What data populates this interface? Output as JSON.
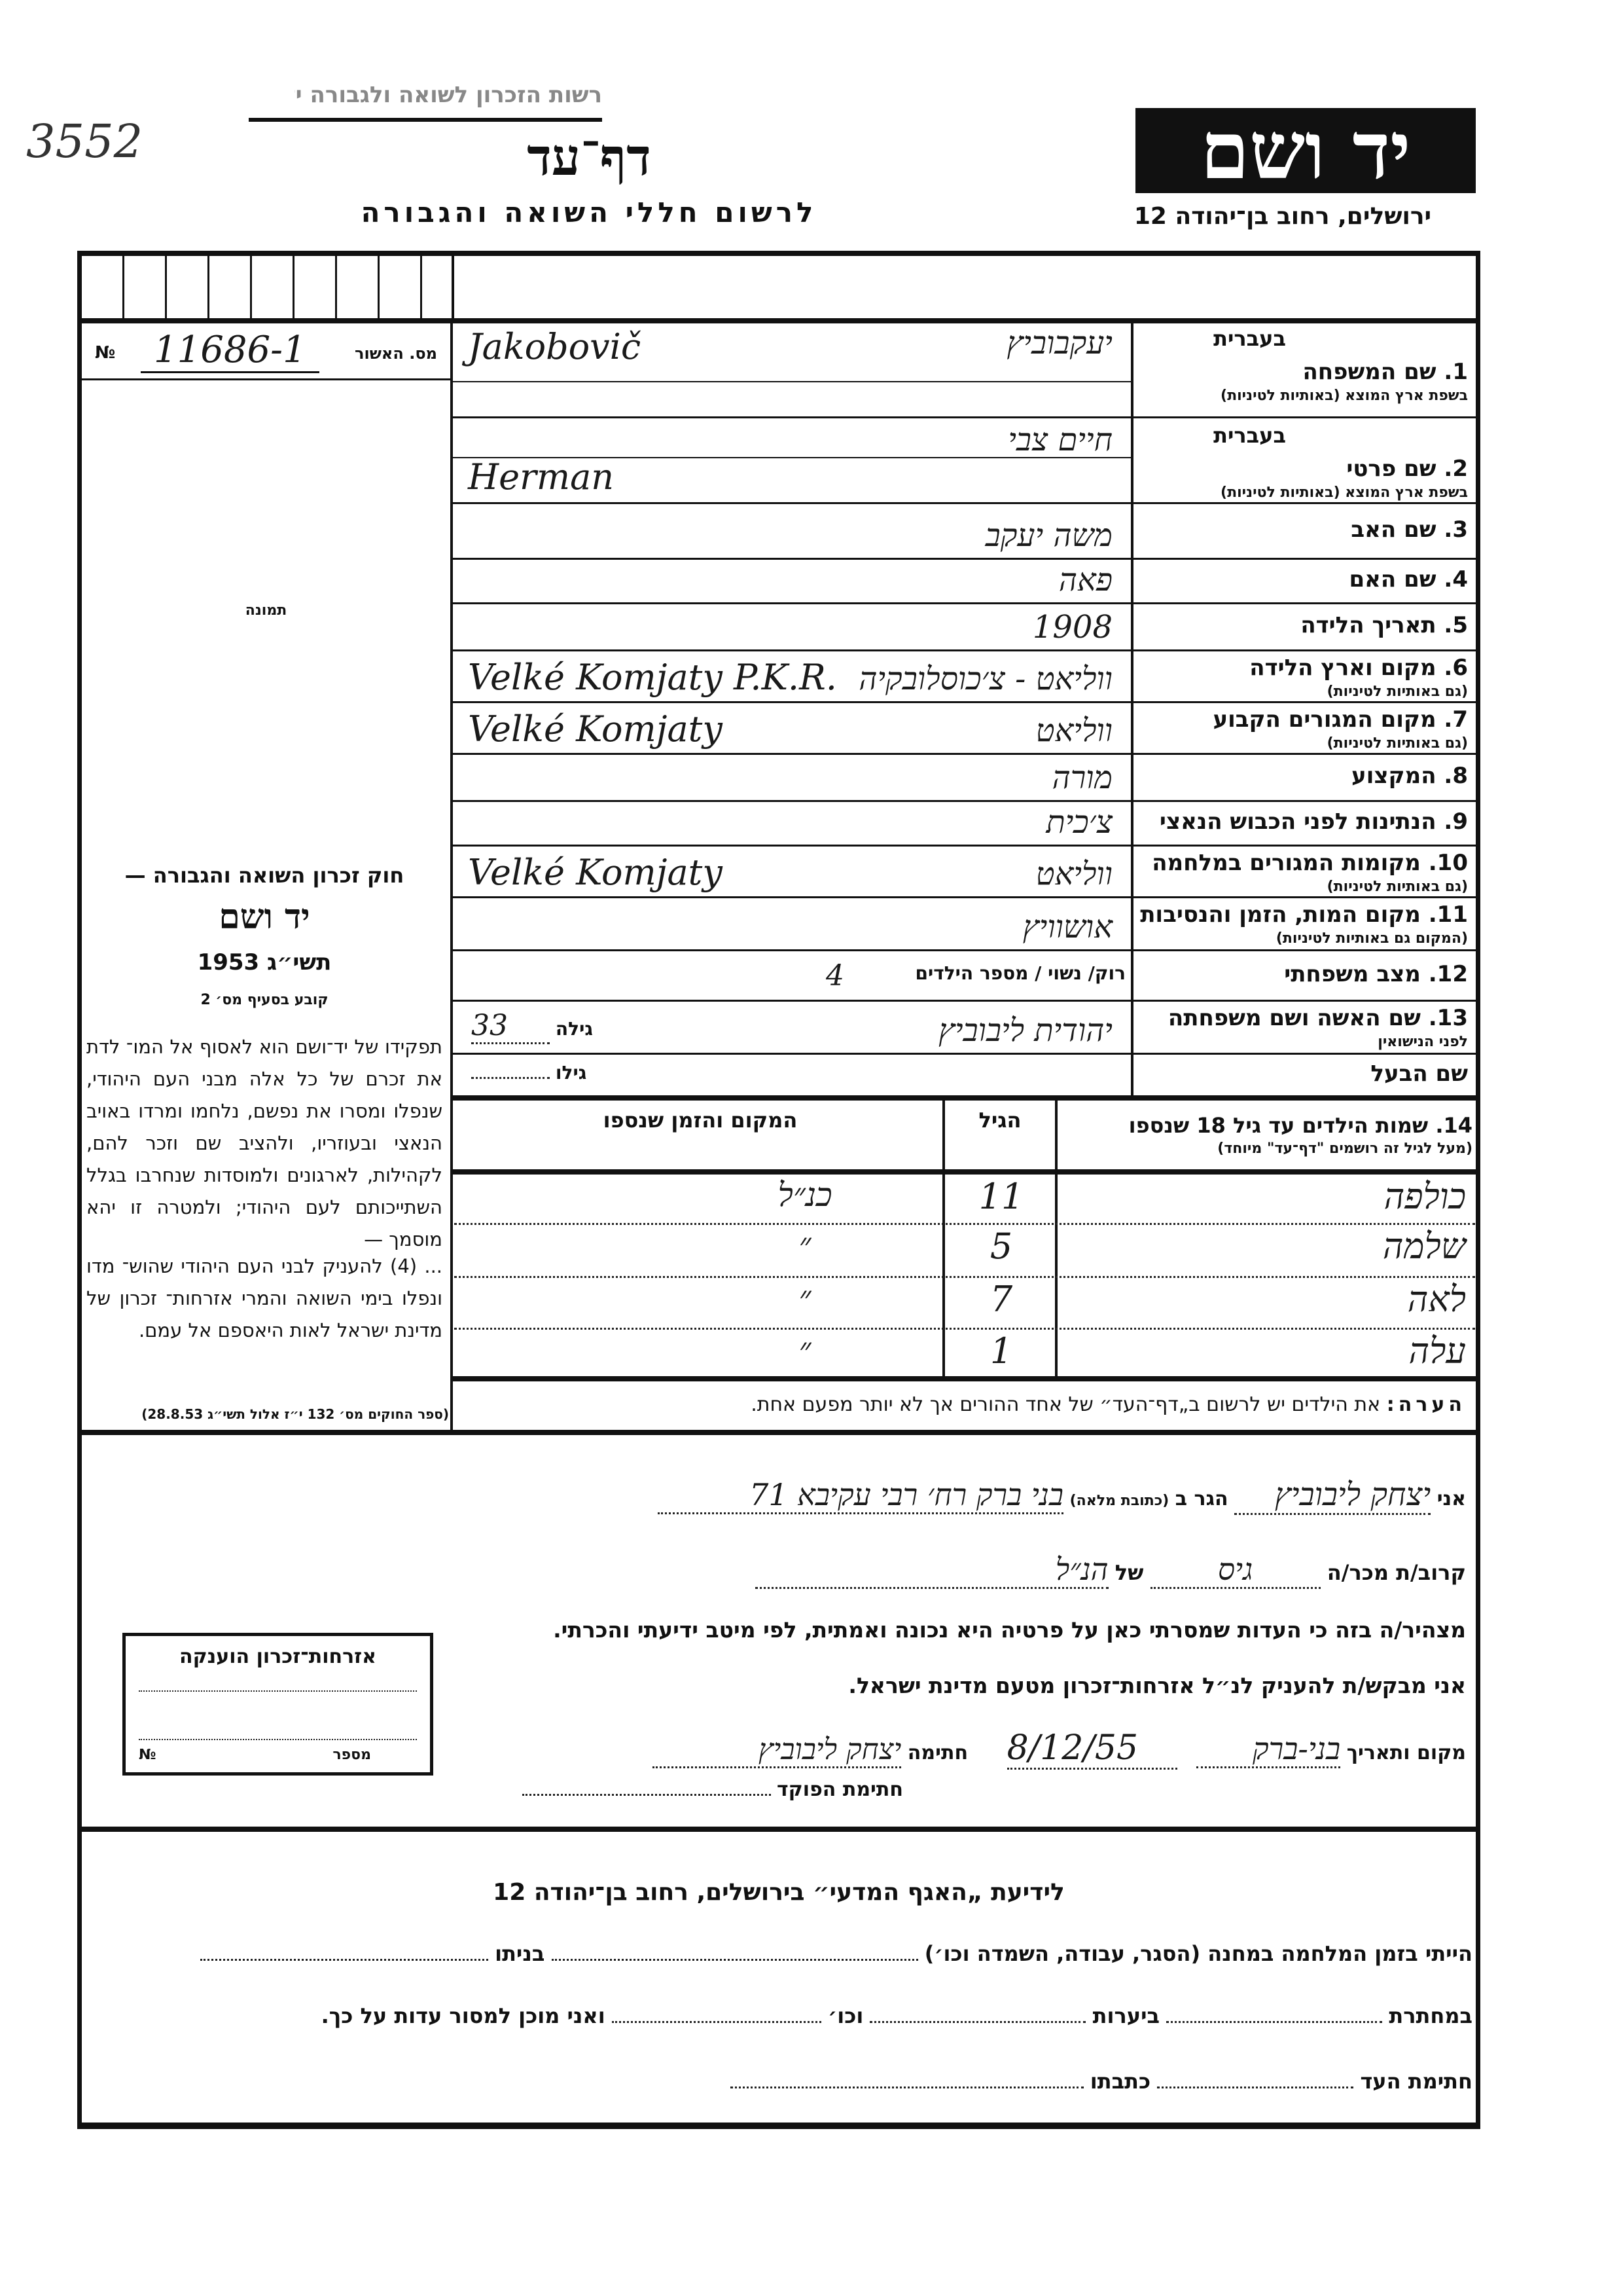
{
  "header": {
    "faded_top_line": "רשות הזכרון לשואה ולגבורה יד ושם",
    "archive_number_handwritten": "3552",
    "logo_text": "יד ושם",
    "address": "ירושלים, רחוב בן־יהודה 12",
    "title": "דף־עד",
    "subtitle": "לרשום חללי השואה והגבורה"
  },
  "left": {
    "serial_label": "מס. האשור",
    "serial_value": "11686-1",
    "serial_suffix": "№",
    "photo_label": "תמונה",
    "law_title": "חוק זכרון השואה והגבורה —",
    "law_name": "יד ושם",
    "law_year": "תשי״ג 1953",
    "law_clause": "קובע בסעיף מס׳ 2",
    "law_text_1": "תפקידו של יד־ושם הוא לאסוף אל המו־ לדת את זכרם של כל אלה מבני העם היהודי, שנפלו ומסרו את נפשם, נלחמו ומרדו באויב הנאצי ובעוזריו, ולהציב שם וזכר להם, לקהילות, לארגונים ולמוסדות שנחרבו בגלל השתייכותם לעם היהודי; ולמטרה זו יהא מוסמך —",
    "law_text_2": "... (4) להעניק לבני העם היהודי שהוש־ מדו ונפלו בימי השואה והמרי אזרחות־ זכרון של מדינת ישראל לאות היאספם אל עמם.",
    "law_source": "(ספר החוקים מס׳ 132 י״ז אלול תשי״ג 28.8.53)",
    "cert_title": "אזרחות־זכרון הוענקה",
    "cert_number_label": "מספר",
    "cert_number_symbol": "№"
  },
  "fields": [
    {
      "num": "1.",
      "label": "שם המשפחה",
      "hebrew_tag": "בעברית",
      "sublabel": "בשפת ארץ המוצא (באותיות לטיניות)",
      "value_he": "יעקבוביץ",
      "value_latin": "Jakobovič"
    },
    {
      "num": "2.",
      "label": "שם פרטי",
      "hebrew_tag": "בעברית",
      "sublabel": "בשפת ארץ המוצא (באותיות לטיניות)",
      "value_he": "חיים צבי",
      "value_latin": "Herman"
    },
    {
      "num": "3.",
      "label": "שם האב",
      "value_he": "משה יעקב"
    },
    {
      "num": "4.",
      "label": "שם האם",
      "value_he": "פאה"
    },
    {
      "num": "5.",
      "label": "תאריך הלידה",
      "value_he": "1908"
    },
    {
      "num": "6.",
      "label": "מקום וארץ הלידה",
      "sublabel": "(גם באותיות לטיניות)",
      "value_he": "ווליאט - צ׳כוסלובקיה",
      "value_latin": "Velké Komjaty P.K.R."
    },
    {
      "num": "7.",
      "label": "מקום המגורים הקבוע",
      "sublabel": "(גם באותיות לטיניות)",
      "value_he": "ווליאט",
      "value_latin": "Velké Komjaty"
    },
    {
      "num": "8.",
      "label": "המקצוע",
      "value_he": "מורה"
    },
    {
      "num": "9.",
      "label": "הנתינות לפני הכבוש הנאצי",
      "value_he": "צ׳כית"
    },
    {
      "num": "10.",
      "label": "מקומות המגורים במלחמה",
      "sublabel": "(גם באותיות לטיניות)",
      "value_he": "ווליאט",
      "value_latin": "Velké Komjaty"
    },
    {
      "num": "11.",
      "label": "מקום המות, הזמן והנסיבות",
      "sublabel": "(המקום גם באותיות לטיניות)",
      "value_he": "אושוויץ"
    },
    {
      "num": "12.",
      "label": "מצב משפחתי",
      "inline_label": "רוק/ נשוי / מספר הילדים",
      "value_he": "4"
    },
    {
      "num": "13.",
      "label": "שם האשה ושם משפחתה",
      "sublabel": "לפני הנישואין",
      "value_he": "יהודית ליבוביץ",
      "age_label": "גילה",
      "age_value": "33"
    },
    {
      "num": "",
      "label": "שם הבעל",
      "age_label": "גילו",
      "age_value": ""
    }
  ],
  "children": {
    "num": "14.",
    "title": "שמות הילדים עד גיל 18 שנספו",
    "subtitle": "(מעל לגיל זה רושמים \"דף־עד\" מיוחד)",
    "age_header": "הגיל",
    "place_header": "המקום והזמן שנספו",
    "rows": [
      {
        "name": "כולפה",
        "age": "11",
        "place": "כנ״ל"
      },
      {
        "name": "שלמה",
        "age": "5",
        "place": "״"
      },
      {
        "name": "לאה",
        "age": "7",
        "place": "״"
      },
      {
        "name": "עלה",
        "age": "1",
        "place": "״"
      }
    ]
  },
  "note": {
    "label": "הערה:",
    "text": "את הילדים יש לרשום ב„דף־העד״ של אחד ההורים אך לא יותר מפעם אחת."
  },
  "declaration": {
    "i_label": "אני",
    "declarant_name": "יצחק ליבוביץ",
    "lives_label": "הגר ב",
    "address_hint": "(כתובת מלאה)",
    "address_value": "בני ברק רח׳ רבי עקיבא 71",
    "relation_label": "קרוב/ת מכר/ה",
    "relation_value": "גיס",
    "of_label": "של",
    "of_value": "הנ״ל",
    "statement": "מצהיר/ה בזה כי העדות שמסרתי כאן על פרטיה היא נכונה ואמתית, לפי מיטב ידיעתי והכרתי.",
    "request": "אני מבקש/ת להעניק לנ״ל אזרחות־זכרון מטעם מדינת ישראל.",
    "place_date_label": "מקום ותאריך",
    "place_value": "בני-ברק",
    "date_value": "8/12/55",
    "signature_label": "חתימה",
    "signature_value": "יצחק ליבוביץ",
    "officer_label": "חתימת הפוקד"
  },
  "lower": {
    "title": "לידיעת „האגף המדעי״ בירושלים, רחוב בן־יהודה 12",
    "line1_a": "הייתי בזמן המלחמה במחנה (הסגר, עבודה, השמדה וכו׳)",
    "line1_b": "בניתו",
    "line2_a": "במחתרת",
    "line2_b": "ביערות",
    "line2_c": "וכו׳",
    "line2_d": "ואני מוכן למסור עדות על כך.",
    "line3_a": "חתימת העד",
    "line3_b": "כתבתו"
  }
}
